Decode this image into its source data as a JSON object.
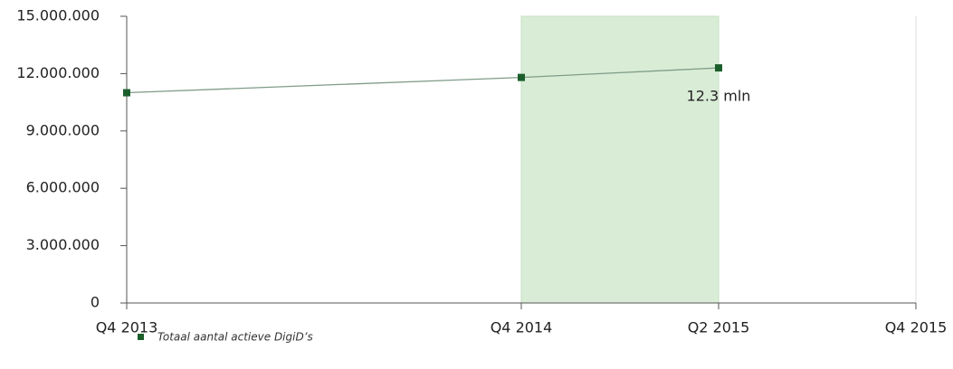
{
  "chart_data": {
    "type": "line",
    "x": [
      "Q4 2013",
      "Q4 2014",
      "Q2 2015"
    ],
    "series": [
      {
        "name": "Totaal aantal actieve DigiD’s",
        "color": "#7f9c89",
        "marker_color": "#1b5e2c",
        "values": [
          11000000,
          11800000,
          12300000
        ],
        "value_labels": [
          null,
          null,
          "12.3 mln"
        ]
      }
    ],
    "xlim": [
      "Q4 2013",
      "Q4 2015"
    ],
    "xticks": [
      "Q4 2013",
      "Q4 2014",
      "Q2 2015",
      "Q4 2015"
    ],
    "ylim": [
      0,
      15000000
    ],
    "yticks": [
      0,
      {
        "value": 3000000,
        "label": "3.000.000"
      },
      {
        "value": 6000000,
        "label": "6.000.000"
      },
      {
        "value": 9000000,
        "label": "9.000.000"
      },
      {
        "value": 12000000,
        "label": "12.000.000"
      },
      {
        "value": 15000000,
        "label": "15.000.000"
      }
    ],
    "highlight": [
      "Q4 2014",
      "Q2 2015"
    ],
    "highlight_color": "#d9edd6",
    "legend": "bottom-left"
  }
}
